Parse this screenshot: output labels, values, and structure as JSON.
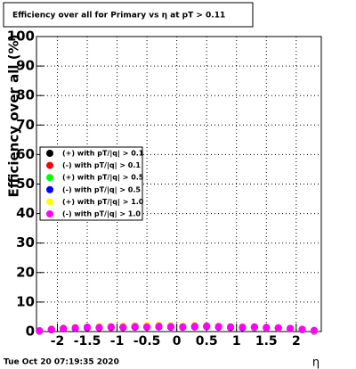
{
  "chart_data": {
    "type": "scatter",
    "title": "Efficiency over all for Primary vs  η at pT > 0.11",
    "y_label": "Efficiency over all (%)",
    "x_label": "η",
    "footer": "Tue Oct 20 07:19:35 2020",
    "x": [
      -2.3,
      -2.1,
      -1.9,
      -1.7,
      -1.5,
      -1.3,
      -1.1,
      -0.9,
      -0.7,
      -0.5,
      -0.3,
      -0.1,
      0.1,
      0.3,
      0.5,
      0.7,
      0.9,
      1.1,
      1.3,
      1.5,
      1.7,
      1.9,
      2.1,
      2.3
    ],
    "series": [
      {
        "name": "(+) with pT/|q| > 0.1",
        "color": "#000000",
        "values": [
          0.2,
          0.7,
          1.0,
          1.2,
          1.4,
          1.3,
          1.5,
          1.4,
          1.6,
          1.5,
          1.7,
          1.6,
          1.5,
          1.7,
          1.8,
          1.6,
          1.5,
          1.4,
          1.5,
          1.3,
          1.2,
          1.0,
          0.7,
          0.3
        ]
      },
      {
        "name": "(-) with pT/|q| > 0.1",
        "color": "#ff0000",
        "values": [
          0.1,
          0.6,
          1.0,
          1.1,
          1.3,
          1.4,
          1.4,
          1.5,
          1.5,
          1.6,
          1.6,
          1.5,
          1.6,
          1.6,
          1.7,
          1.5,
          1.4,
          1.5,
          1.4,
          1.2,
          1.1,
          0.9,
          0.6,
          0.1
        ]
      },
      {
        "name": "(+) with pT/|q| > 0.5",
        "color": "#00ff00",
        "values": [
          0.2,
          0.8,
          1.1,
          1.3,
          1.5,
          1.5,
          1.6,
          1.7,
          1.8,
          1.8,
          1.9,
          1.8,
          1.7,
          1.9,
          1.9,
          1.7,
          1.6,
          1.5,
          1.5,
          1.3,
          1.2,
          1.0,
          0.7,
          0.2
        ]
      },
      {
        "name": "(-) with pT/|q| > 0.5",
        "color": "#0000ff",
        "values": [
          0.1,
          0.7,
          1.0,
          1.2,
          1.4,
          1.5,
          1.5,
          1.6,
          1.6,
          1.7,
          1.7,
          1.6,
          1.6,
          1.7,
          1.8,
          1.6,
          1.5,
          1.4,
          1.4,
          1.2,
          1.1,
          0.9,
          0.6,
          0.2
        ]
      },
      {
        "name": "(+) with pT/|q| > 1.0",
        "color": "#ffff00",
        "values": [
          0.2,
          0.9,
          1.2,
          1.4,
          1.6,
          1.7,
          1.8,
          1.9,
          2.0,
          2.1,
          2.2,
          2.0,
          1.9,
          2.1,
          2.0,
          1.8,
          1.7,
          1.6,
          1.5,
          1.3,
          1.2,
          1.0,
          0.7,
          0.3
        ]
      },
      {
        "name": "(-) with pT/|q| > 1.0",
        "color": "#ff00ff",
        "values": [
          0.3,
          0.8,
          1.1,
          1.3,
          1.5,
          1.4,
          1.6,
          1.5,
          1.7,
          1.6,
          1.8,
          1.7,
          1.6,
          1.8,
          1.9,
          1.7,
          1.6,
          1.5,
          1.6,
          1.4,
          1.3,
          1.1,
          0.8,
          0.4
        ]
      }
    ],
    "xlim": [
      -2.35,
      2.42
    ],
    "xticks": [
      -2,
      -1.5,
      -1,
      -0.5,
      0,
      0.5,
      1,
      1.5,
      2
    ],
    "ylim": [
      0,
      100
    ],
    "yticks": [
      0,
      10,
      20,
      30,
      40,
      50,
      60,
      70,
      80,
      90,
      100
    ],
    "grid": true
  }
}
